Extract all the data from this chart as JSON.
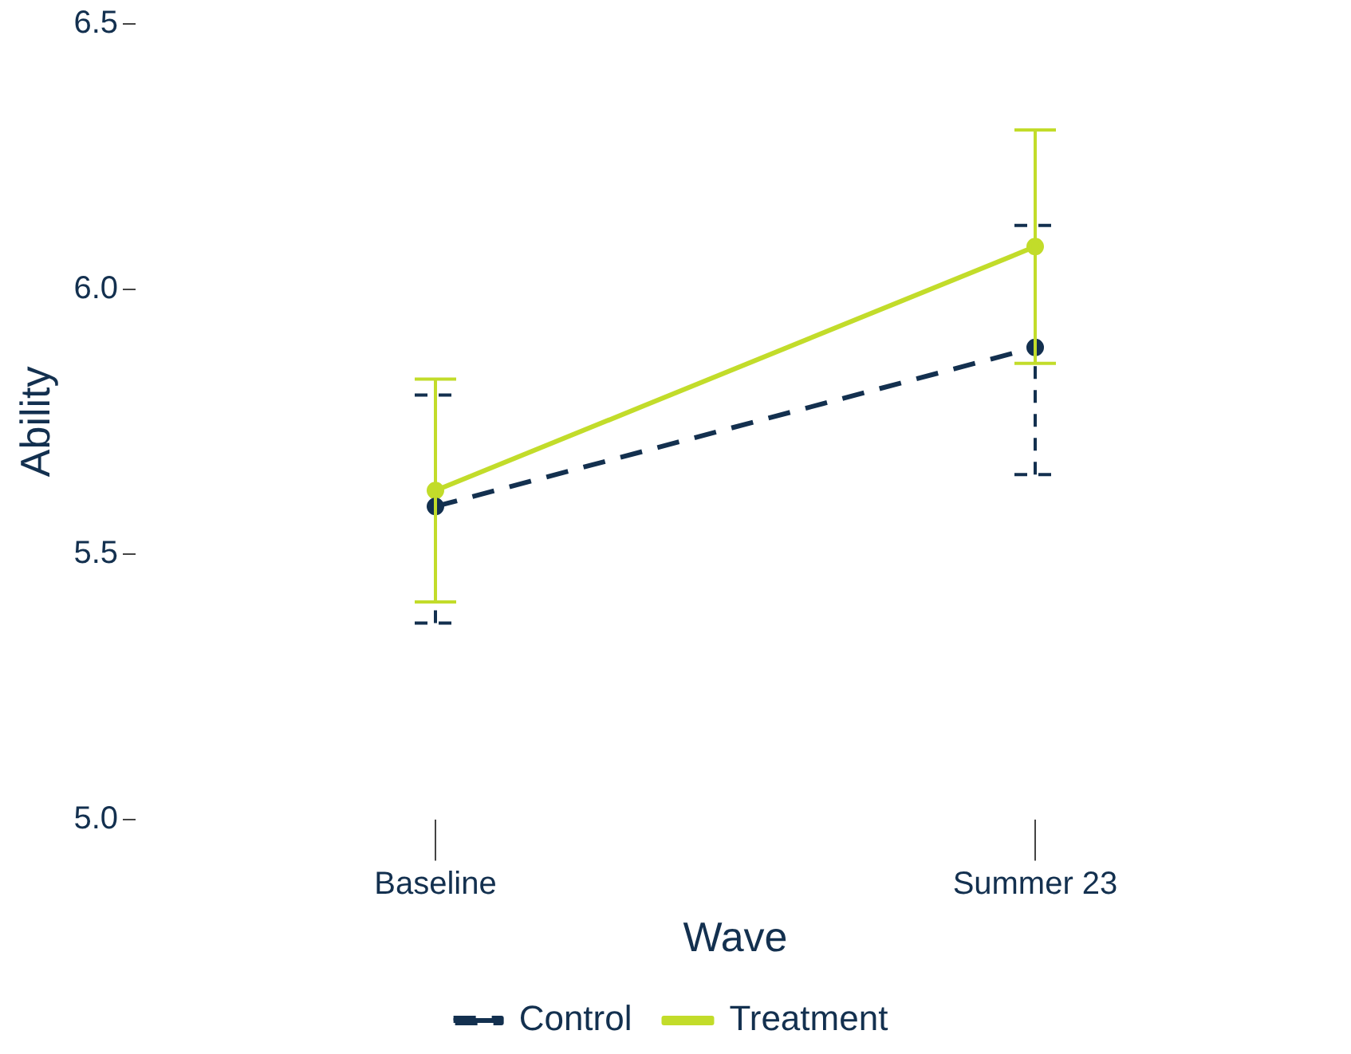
{
  "chart_data": {
    "type": "line",
    "xlabel": "Wave",
    "ylabel": "Ability",
    "categories": [
      "Baseline",
      "Summer 23"
    ],
    "series": [
      {
        "name": "Control",
        "color": "#13304f",
        "values": [
          5.59,
          5.89
        ],
        "errors": [
          [
            5.37,
            5.8
          ],
          [
            5.65,
            6.12
          ]
        ],
        "line_style": "dashed"
      },
      {
        "name": "Treatment",
        "color": "#c2dc2a",
        "values": [
          5.62,
          6.08
        ],
        "errors": [
          [
            5.41,
            5.83
          ],
          [
            5.86,
            6.3
          ]
        ],
        "line_style": "solid"
      }
    ],
    "ylim": [
      5,
      6.5
    ],
    "yticks": [
      {
        "value": 5,
        "label": "5.0"
      },
      {
        "value": 5.5,
        "label": "5.5"
      },
      {
        "value": 6,
        "label": "6.0"
      },
      {
        "value": 6.5,
        "label": "6.5"
      }
    ],
    "grid": false,
    "legend": "bottom",
    "marker": "circle"
  }
}
